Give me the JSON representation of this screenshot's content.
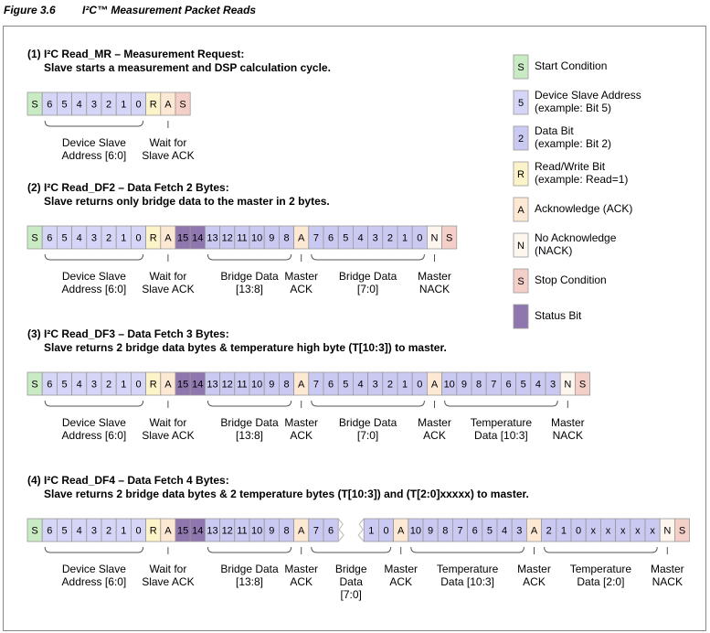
{
  "figure": {
    "number": "Figure 3.6",
    "title": "I²C™ Measurement Packet Reads"
  },
  "sections": [
    {
      "heading": [
        "(1) I²C Read_MR – Measurement Request:",
        "Slave starts a measurement and DSP calculation cycle."
      ],
      "segments": [
        {
          "color": "#c9ebc4",
          "cells": [
            "S"
          ]
        },
        {
          "color": "#d5d5f7",
          "cells": [
            "6",
            "5",
            "4",
            "3",
            "2",
            "1",
            "0"
          ],
          "label": [
            "Device Slave",
            "Address [6:0]"
          ]
        },
        {
          "color": "#fdf3c8",
          "cells": [
            "R"
          ]
        },
        {
          "color": "#fde8d4",
          "cells": [
            "A"
          ],
          "label": [
            "Wait for",
            "Slave ACK"
          ]
        },
        {
          "color": "#f4cfc8",
          "cells": [
            "S"
          ]
        }
      ]
    },
    {
      "heading": [
        "(2) I²C Read_DF2 – Data Fetch 2 Bytes:",
        "Slave returns only bridge data to the master in 2 bytes."
      ],
      "segments": [
        {
          "color": "#c9ebc4",
          "cells": [
            "S"
          ]
        },
        {
          "color": "#d5d5f7",
          "cells": [
            "6",
            "5",
            "4",
            "3",
            "2",
            "1",
            "0"
          ],
          "label": [
            "Device Slave",
            "Address [6:0]"
          ]
        },
        {
          "color": "#fdf3c8",
          "cells": [
            "R"
          ]
        },
        {
          "color": "#fde8d4",
          "cells": [
            "A"
          ],
          "label": [
            "Wait for",
            "Slave ACK"
          ]
        },
        {
          "color": "#8f76ae",
          "cells": [
            "15",
            "14"
          ]
        },
        {
          "color": "#c9c9f2",
          "cells": [
            "13",
            "12",
            "11",
            "10",
            "9",
            "8"
          ],
          "label": [
            "Bridge Data",
            "[13:8]"
          ]
        },
        {
          "color": "#fde8d4",
          "cells": [
            "A"
          ],
          "label": [
            "Master",
            "ACK"
          ]
        },
        {
          "color": "#c9c9f2",
          "cells": [
            "7",
            "6",
            "5",
            "4",
            "3",
            "2",
            "1",
            "0"
          ],
          "label": [
            "Bridge Data",
            "[7:0]"
          ]
        },
        {
          "color": "#fdf6ee",
          "cells": [
            "N"
          ],
          "label": [
            "Master",
            "NACK"
          ]
        },
        {
          "color": "#f4cfc8",
          "cells": [
            "S"
          ]
        }
      ]
    },
    {
      "heading": [
        "(3) I²C Read_DF3 – Data Fetch 3 Bytes:",
        "Slave returns 2 bridge data bytes & temperature high byte (T[10:3]) to master."
      ],
      "segments": [
        {
          "color": "#c9ebc4",
          "cells": [
            "S"
          ]
        },
        {
          "color": "#d5d5f7",
          "cells": [
            "6",
            "5",
            "4",
            "3",
            "2",
            "1",
            "0"
          ],
          "label": [
            "Device Slave",
            "Address [6:0]"
          ]
        },
        {
          "color": "#fdf3c8",
          "cells": [
            "R"
          ]
        },
        {
          "color": "#fde8d4",
          "cells": [
            "A"
          ],
          "label": [
            "Wait for",
            "Slave ACK"
          ]
        },
        {
          "color": "#8f76ae",
          "cells": [
            "15",
            "14"
          ]
        },
        {
          "color": "#c9c9f2",
          "cells": [
            "13",
            "12",
            "11",
            "10",
            "9",
            "8"
          ],
          "label": [
            "Bridge Data",
            "[13:8]"
          ]
        },
        {
          "color": "#fde8d4",
          "cells": [
            "A"
          ],
          "label": [
            "Master",
            "ACK"
          ]
        },
        {
          "color": "#c9c9f2",
          "cells": [
            "7",
            "6",
            "5",
            "4",
            "3",
            "2",
            "1",
            "0"
          ],
          "label": [
            "Bridge Data",
            "[7:0]"
          ]
        },
        {
          "color": "#fde8d4",
          "cells": [
            "A"
          ],
          "label": [
            "Master",
            "ACK"
          ]
        },
        {
          "color": "#c9c9f2",
          "cells": [
            "10",
            "9",
            "8",
            "7",
            "6",
            "5",
            "4",
            "3"
          ],
          "label": [
            "Temperature",
            "Data [10:3]"
          ]
        },
        {
          "color": "#fdf6ee",
          "cells": [
            "N"
          ],
          "label": [
            "Master",
            "NACK"
          ]
        },
        {
          "color": "#f4cfc8",
          "cells": [
            "S"
          ]
        }
      ]
    },
    {
      "heading": [
        "(4) I²C Read_DF4 – Data Fetch 4 Bytes:",
        "Slave returns 2 bridge data bytes & 2 temperature bytes (T[10:3]) and (T[2:0]xxxxx) to master."
      ],
      "segments": [
        {
          "color": "#c9ebc4",
          "cells": [
            "S"
          ]
        },
        {
          "color": "#d5d5f7",
          "cells": [
            "6",
            "5",
            "4",
            "3",
            "2",
            "1",
            "0"
          ],
          "label": [
            "Device Slave",
            "Address [6:0]"
          ]
        },
        {
          "color": "#fdf3c8",
          "cells": [
            "R"
          ]
        },
        {
          "color": "#fde8d4",
          "cells": [
            "A"
          ],
          "label": [
            "Wait for",
            "Slave ACK"
          ]
        },
        {
          "color": "#8f76ae",
          "cells": [
            "15",
            "14"
          ]
        },
        {
          "color": "#c9c9f2",
          "cells": [
            "13",
            "12",
            "11",
            "10",
            "9",
            "8"
          ],
          "label": [
            "Bridge Data",
            "[13:8]"
          ]
        },
        {
          "color": "#fde8d4",
          "cells": [
            "A"
          ],
          "label": [
            "Master",
            "ACK"
          ]
        },
        {
          "color": "#c9c9f2",
          "cells": [
            [
              "7",
              "6"
            ],
            [
              "1",
              "0"
            ]
          ],
          "label": [
            "Bridge",
            "Data",
            "[7:0]"
          ]
        },
        {
          "color": "#fde8d4",
          "cells": [
            "A"
          ],
          "label": [
            "Master",
            "ACK"
          ]
        },
        {
          "color": "#c9c9f2",
          "cells": [
            "10",
            "9",
            "8",
            "7",
            "6",
            "5",
            "4",
            "3"
          ],
          "label": [
            "Temperature",
            "Data [10:3]"
          ]
        },
        {
          "color": "#fde8d4",
          "cells": [
            "A"
          ],
          "label": [
            "Master",
            "ACK"
          ]
        },
        {
          "color": "#c9c9f2",
          "cells": [
            "2",
            "1",
            "0",
            "x",
            "x",
            "x",
            "x",
            "x"
          ],
          "label": [
            "Temperature",
            "Data [2:0]"
          ]
        },
        {
          "color": "#fdf6ee",
          "cells": [
            "N"
          ],
          "label": [
            "Master",
            "NACK"
          ]
        },
        {
          "color": "#f4cfc8",
          "cells": [
            "S"
          ]
        }
      ]
    }
  ],
  "legend": [
    {
      "sample": "S",
      "color": "#c9ebc4",
      "text": [
        "Start Condition"
      ]
    },
    {
      "sample": "5",
      "color": "#d5d5f7",
      "text": [
        "Device Slave Address",
        "(example: Bit 5)"
      ]
    },
    {
      "sample": "2",
      "color": "#c9c9f2",
      "text": [
        "Data Bit",
        "(example: Bit 2)"
      ]
    },
    {
      "sample": "R",
      "color": "#fdf3c8",
      "text": [
        "Read/Write Bit",
        "(example: Read=1)"
      ]
    },
    {
      "sample": "A",
      "color": "#fde8d4",
      "text": [
        "Acknowledge (ACK)"
      ]
    },
    {
      "sample": "N",
      "color": "#fdf6ee",
      "text": [
        "No Acknowledge",
        "(NACK)"
      ]
    },
    {
      "sample": "S",
      "color": "#f4cfc8",
      "text": [
        "Stop Condition"
      ]
    },
    {
      "color": "#8f76ae",
      "text": [
        "Status Bit"
      ]
    }
  ]
}
